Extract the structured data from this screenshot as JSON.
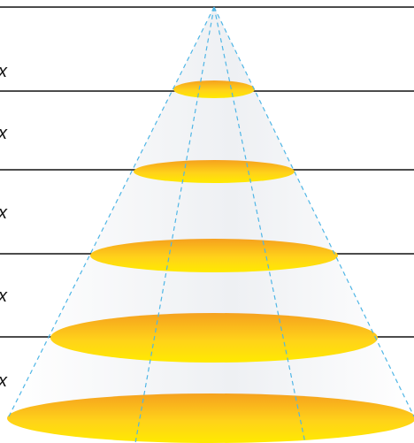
{
  "figure": {
    "row_labels": [
      "x",
      "x",
      "x",
      "x",
      "x"
    ],
    "colors": {
      "disc_light": "#FFE600",
      "disc_dark": "#F5A623",
      "dashed_lines": "#4FB6E6",
      "cone_shade": "#E6E9EE",
      "rules": "#111111"
    }
  }
}
